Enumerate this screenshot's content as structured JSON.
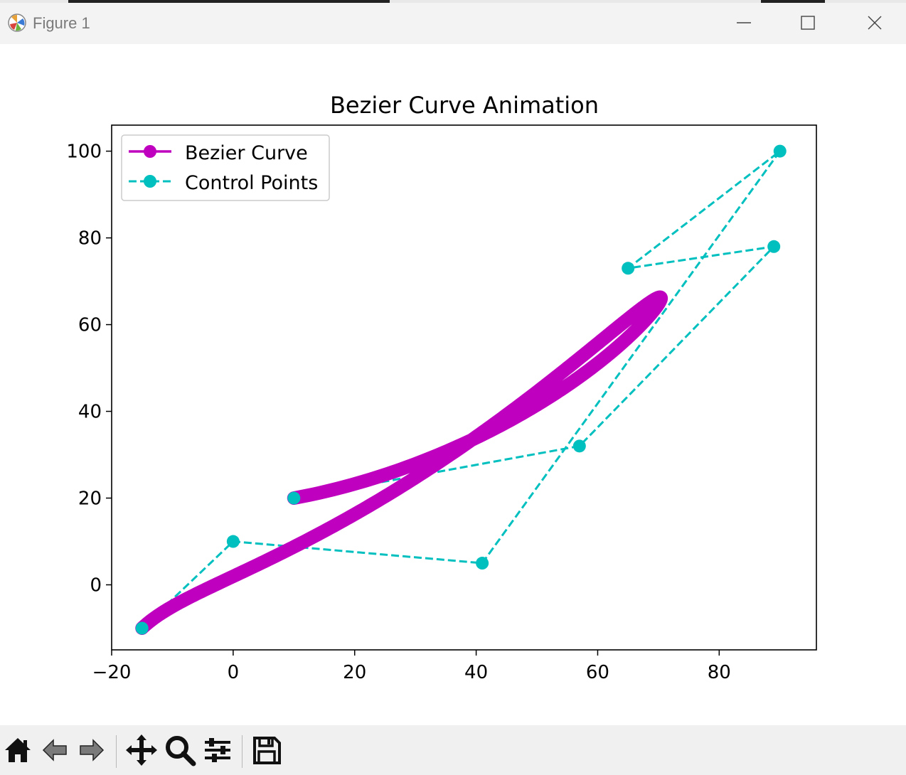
{
  "window": {
    "title": "Figure 1",
    "icons": [
      "matplotlib-logo-icon",
      "minimize-icon",
      "maximize-icon",
      "close-icon"
    ]
  },
  "toolbar": {
    "buttons": [
      "home-icon",
      "back-arrow-icon",
      "forward-arrow-icon",
      "pan-move-icon",
      "zoom-magnifier-icon",
      "configure-subplots-icon",
      "save-floppy-icon"
    ]
  },
  "colors": {
    "bezier": "#bf00bf",
    "control": "#00bfbf",
    "axes": "#000000",
    "titlebar": "#f3f3f3",
    "toolbar": "#f0f0f0"
  },
  "chart_data": {
    "type": "line",
    "title": "Bezier Curve Animation",
    "xlabel": "",
    "ylabel": "",
    "xlim": [
      -20,
      96
    ],
    "ylim": [
      -15,
      106
    ],
    "xticks": [
      -20,
      0,
      20,
      40,
      60,
      80
    ],
    "xtick_labels": [
      "−20",
      "0",
      "20",
      "40",
      "60",
      "80"
    ],
    "yticks": [
      0,
      20,
      40,
      60,
      80,
      100
    ],
    "ytick_labels": [
      "0",
      "20",
      "40",
      "60",
      "80",
      "100"
    ],
    "grid": false,
    "legend_position": "upper-left",
    "series": [
      {
        "name": "Bezier Curve",
        "style": "solid-thick-with-round-markers",
        "sample_count": 400
      },
      {
        "name": "Control Points",
        "style": "dashed-with-circle-markers",
        "x": [
          -15,
          0,
          41,
          90,
          65,
          89,
          57,
          10
        ],
        "y": [
          -10,
          10,
          5,
          100,
          73,
          78,
          32,
          20
        ]
      }
    ]
  }
}
